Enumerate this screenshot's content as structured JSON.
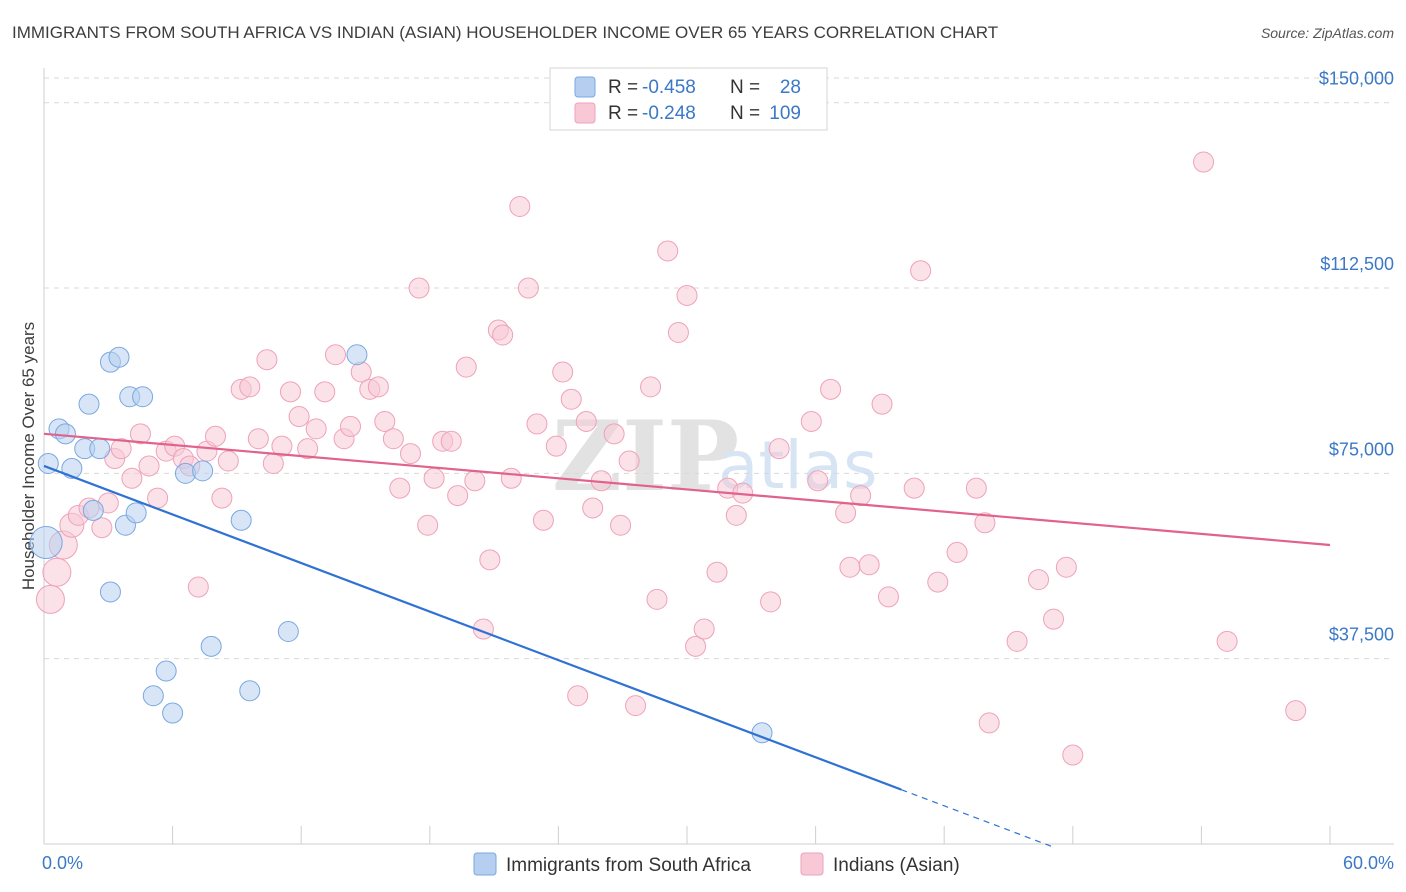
{
  "chart_data": {
    "type": "scatter",
    "title": "IMMIGRANTS FROM SOUTH AFRICA VS INDIAN (ASIAN) HOUSEHOLDER INCOME OVER 65 YEARS CORRELATION CHART",
    "source": "Source: ZipAtlas.com",
    "ylabel": "Householder Income Over 65 years",
    "xlim": [
      0,
      60
    ],
    "ylim": [
      0,
      155000
    ],
    "x_tick_labels": [
      {
        "value": 0,
        "label": "0.0%"
      },
      {
        "value": 60,
        "label": "60.0%"
      }
    ],
    "y_ticks": [
      {
        "value": 37500,
        "label": "$37,500"
      },
      {
        "value": 75000,
        "label": "$75,000"
      },
      {
        "value": 112500,
        "label": "$112,500"
      },
      {
        "value": 150000,
        "label": "$150,000"
      }
    ],
    "watermark": {
      "zip": "ZIP",
      "atlas": "atlas"
    },
    "series": [
      {
        "name": "Immigrants from South Africa",
        "color": "#7aa8e0",
        "fill": "#b6cff0",
        "line_color": "#2f72d4",
        "R": "-0.458",
        "N": "28",
        "trend": {
          "x0": 0,
          "y0": 76500,
          "x1": 40,
          "y1": 11000,
          "dash_to_x": 47
        },
        "points": [
          [
            0.1,
            61000,
            16
          ],
          [
            0.2,
            77000,
            10
          ],
          [
            0.7,
            84000,
            10
          ],
          [
            1.0,
            83000,
            10
          ],
          [
            1.3,
            76000,
            10
          ],
          [
            1.9,
            80000,
            10
          ],
          [
            2.1,
            89000,
            10
          ],
          [
            2.3,
            67500,
            10
          ],
          [
            2.6,
            80000,
            10
          ],
          [
            3.1,
            51000,
            10
          ],
          [
            3.1,
            97500,
            10
          ],
          [
            3.5,
            98500,
            10
          ],
          [
            3.8,
            64500,
            10
          ],
          [
            4.0,
            90500,
            10
          ],
          [
            4.3,
            67000,
            10
          ],
          [
            4.6,
            90500,
            10
          ],
          [
            5.1,
            30000,
            10
          ],
          [
            5.7,
            35000,
            10
          ],
          [
            6.0,
            26500,
            10
          ],
          [
            6.6,
            75000,
            10
          ],
          [
            7.4,
            75500,
            10
          ],
          [
            7.8,
            40000,
            10
          ],
          [
            9.2,
            65500,
            10
          ],
          [
            9.6,
            31000,
            10
          ],
          [
            11.4,
            43000,
            10
          ],
          [
            14.6,
            99000,
            10
          ],
          [
            33.5,
            22500,
            10
          ]
        ]
      },
      {
        "name": "Indians (Asian)",
        "color": "#eea2b9",
        "fill": "#f8c8d6",
        "line_color": "#e0628d",
        "R": "-0.248",
        "N": "109",
        "trend": {
          "x0": 0,
          "y0": 83000,
          "x1": 60,
          "y1": 60500
        },
        "points": [
          [
            0.3,
            49500,
            14
          ],
          [
            0.6,
            55000,
            14
          ],
          [
            0.9,
            60500,
            14
          ],
          [
            1.3,
            64500,
            12
          ],
          [
            1.6,
            66500,
            10
          ],
          [
            2.1,
            68000,
            10
          ],
          [
            2.7,
            64000,
            10
          ],
          [
            3.0,
            69000,
            10
          ],
          [
            3.3,
            78000,
            10
          ],
          [
            3.6,
            80000,
            10
          ],
          [
            4.1,
            74000,
            10
          ],
          [
            4.5,
            83000,
            10
          ],
          [
            4.9,
            76500,
            10
          ],
          [
            5.3,
            70000,
            10
          ],
          [
            5.7,
            79500,
            10
          ],
          [
            6.1,
            80500,
            10
          ],
          [
            6.5,
            78000,
            10
          ],
          [
            6.8,
            76500,
            10
          ],
          [
            7.2,
            52000,
            10
          ],
          [
            7.6,
            79500,
            10
          ],
          [
            8.0,
            82500,
            10
          ],
          [
            8.3,
            70000,
            10
          ],
          [
            8.6,
            77500,
            10
          ],
          [
            9.2,
            92000,
            10
          ],
          [
            9.6,
            92500,
            10
          ],
          [
            10.0,
            82000,
            10
          ],
          [
            10.4,
            98000,
            10
          ],
          [
            10.7,
            77000,
            10
          ],
          [
            11.1,
            80500,
            10
          ],
          [
            11.5,
            91500,
            10
          ],
          [
            11.9,
            86500,
            10
          ],
          [
            12.3,
            80000,
            10
          ],
          [
            12.7,
            84000,
            10
          ],
          [
            13.1,
            91500,
            10
          ],
          [
            13.6,
            99000,
            10
          ],
          [
            14.0,
            82000,
            10
          ],
          [
            14.3,
            84500,
            10
          ],
          [
            14.8,
            95500,
            10
          ],
          [
            15.2,
            92000,
            10
          ],
          [
            15.6,
            92500,
            10
          ],
          [
            15.9,
            85500,
            10
          ],
          [
            16.3,
            82000,
            10
          ],
          [
            16.6,
            72000,
            10
          ],
          [
            17.1,
            79000,
            10
          ],
          [
            17.5,
            112500,
            10
          ],
          [
            17.9,
            64500,
            10
          ],
          [
            18.2,
            74000,
            10
          ],
          [
            18.6,
            81500,
            10
          ],
          [
            19.0,
            81500,
            10
          ],
          [
            19.3,
            70500,
            10
          ],
          [
            19.7,
            96500,
            10
          ],
          [
            20.1,
            73500,
            10
          ],
          [
            20.5,
            43500,
            10
          ],
          [
            20.8,
            57500,
            10
          ],
          [
            21.2,
            104000,
            10
          ],
          [
            21.4,
            103000,
            10
          ],
          [
            21.8,
            74000,
            10
          ],
          [
            22.2,
            129000,
            10
          ],
          [
            22.6,
            112500,
            10
          ],
          [
            23.0,
            85000,
            10
          ],
          [
            23.3,
            65500,
            10
          ],
          [
            23.9,
            80500,
            10
          ],
          [
            24.2,
            95500,
            10
          ],
          [
            24.6,
            90000,
            10
          ],
          [
            24.9,
            30000,
            10
          ],
          [
            25.3,
            85500,
            10
          ],
          [
            25.6,
            68000,
            10
          ],
          [
            26.0,
            73500,
            10
          ],
          [
            26.6,
            83000,
            10
          ],
          [
            26.9,
            64500,
            10
          ],
          [
            27.3,
            77500,
            10
          ],
          [
            27.6,
            28000,
            10
          ],
          [
            28.3,
            92500,
            10
          ],
          [
            28.6,
            49500,
            10
          ],
          [
            29.1,
            120000,
            10
          ],
          [
            29.6,
            103500,
            10
          ],
          [
            30.0,
            111000,
            10
          ],
          [
            30.4,
            40000,
            10
          ],
          [
            30.8,
            43500,
            10
          ],
          [
            31.4,
            55000,
            10
          ],
          [
            31.9,
            72000,
            10
          ],
          [
            32.3,
            66500,
            10
          ],
          [
            32.6,
            71000,
            10
          ],
          [
            33.9,
            49000,
            10
          ],
          [
            34.3,
            80000,
            10
          ],
          [
            35.8,
            85500,
            10
          ],
          [
            36.1,
            73500,
            10
          ],
          [
            36.7,
            92000,
            10
          ],
          [
            37.4,
            67000,
            10
          ],
          [
            37.6,
            56000,
            10
          ],
          [
            38.1,
            70500,
            10
          ],
          [
            38.5,
            56500,
            10
          ],
          [
            39.1,
            89000,
            10
          ],
          [
            39.4,
            50000,
            10
          ],
          [
            40.6,
            72000,
            10
          ],
          [
            40.9,
            116000,
            10
          ],
          [
            41.7,
            53000,
            10
          ],
          [
            42.6,
            59000,
            10
          ],
          [
            43.5,
            72000,
            10
          ],
          [
            43.9,
            65000,
            10
          ],
          [
            44.1,
            24500,
            10
          ],
          [
            45.4,
            41000,
            10
          ],
          [
            46.4,
            53500,
            10
          ],
          [
            47.1,
            45500,
            10
          ],
          [
            47.7,
            56000,
            10
          ],
          [
            48.0,
            18000,
            10
          ],
          [
            54.1,
            138000,
            10
          ],
          [
            55.2,
            41000,
            10
          ],
          [
            58.4,
            27000,
            10
          ]
        ]
      }
    ]
  }
}
